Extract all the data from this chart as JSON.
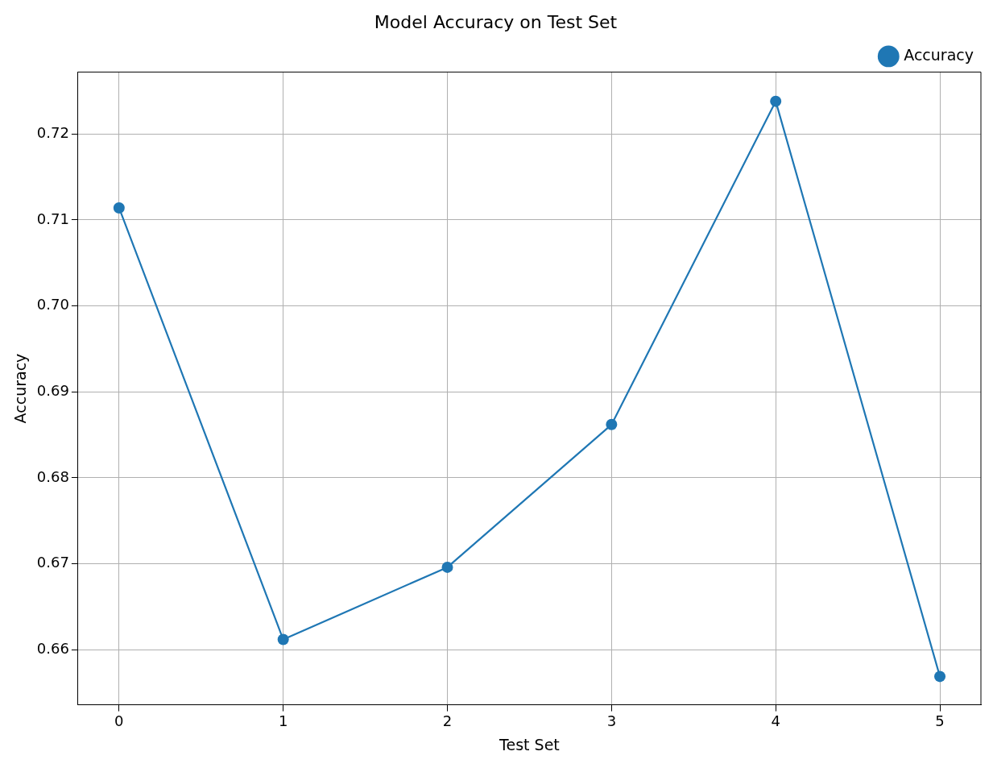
{
  "chart_data": {
    "type": "line",
    "title": "Model Accuracy on Test Set",
    "xlabel": "Test Set",
    "ylabel": "Accuracy",
    "x": [
      0,
      1,
      2,
      3,
      4,
      5
    ],
    "series": [
      {
        "name": "Accuracy",
        "color": "#1f77b4",
        "values": [
          0.7114,
          0.6612,
          0.6696,
          0.6862,
          0.7238,
          0.6569
        ]
      }
    ],
    "xlim": [
      -0.25,
      5.25
    ],
    "xticks": [
      0,
      1,
      2,
      3,
      4,
      5
    ],
    "ylim": [
      0.6536,
      0.7272
    ],
    "yticks": [
      {
        "value": 0.66,
        "label": "0.66"
      },
      {
        "value": 0.67,
        "label": "0.67"
      },
      {
        "value": 0.68,
        "label": "0.68"
      },
      {
        "value": 0.69,
        "label": "0.69"
      },
      {
        "value": 0.7,
        "label": "0.70"
      },
      {
        "value": 0.71,
        "label": "0.71"
      },
      {
        "value": 0.72,
        "label": "0.72"
      }
    ],
    "grid": true,
    "legend": "top right",
    "marker": "circle",
    "line_style": "solid"
  }
}
